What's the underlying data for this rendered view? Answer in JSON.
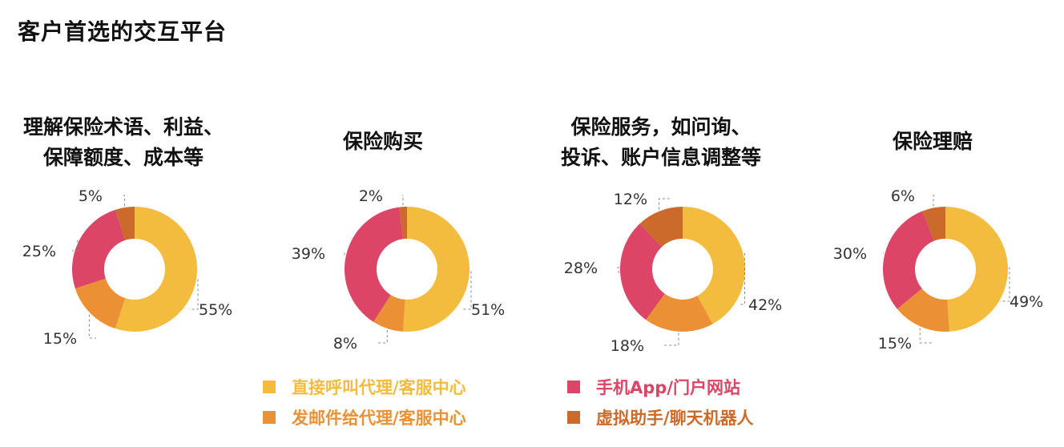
{
  "title": "客户首选的交互平台",
  "colors": {
    "phone": "#F3BC3E",
    "email": "#EC9035",
    "app": "#DC4565",
    "bot": "#CB6A2A"
  },
  "legend": [
    {
      "key": "phone",
      "label": "直接呼叫代理/客服中心",
      "color": "#F3BC3E"
    },
    {
      "key": "app",
      "label": "手机App/门户网站",
      "color": "#DC4565"
    },
    {
      "key": "email",
      "label": "发邮件给代理/客服中心",
      "color": "#EC9035"
    },
    {
      "key": "bot",
      "label": "虚拟助手/聊天机器人",
      "color": "#CB6A2A"
    }
  ],
  "chart_data": [
    {
      "type": "pie",
      "title": [
        "理解保险术语、利益、",
        "保障额度、成本等"
      ],
      "categories": [
        "直接呼叫代理/客服中心",
        "发邮件给代理/客服中心",
        "手机App/门户网站",
        "虚拟助手/聊天机器人"
      ],
      "values": [
        55,
        15,
        25,
        5
      ],
      "labels": [
        "55%",
        "15%",
        "25%",
        "5%"
      ]
    },
    {
      "type": "pie",
      "title": [
        "保险购买"
      ],
      "categories": [
        "直接呼叫代理/客服中心",
        "发邮件给代理/客服中心",
        "手机App/门户网站",
        "虚拟助手/聊天机器人"
      ],
      "values": [
        51,
        8,
        39,
        2
      ],
      "labels": [
        "51%",
        "8%",
        "39%",
        "2%"
      ]
    },
    {
      "type": "pie",
      "title": [
        "保险服务，如问询、",
        "投诉、账户信息调整等"
      ],
      "categories": [
        "直接呼叫代理/客服中心",
        "发邮件给代理/客服中心",
        "手机App/门户网站",
        "虚拟助手/聊天机器人"
      ],
      "values": [
        42,
        18,
        28,
        12
      ],
      "labels": [
        "42%",
        "18%",
        "28%",
        "12%"
      ]
    },
    {
      "type": "pie",
      "title": [
        "保险理赔"
      ],
      "categories": [
        "直接呼叫代理/客服中心",
        "发邮件给代理/客服中心",
        "手机App/门户网站",
        "虚拟助手/聊天机器人"
      ],
      "values": [
        49,
        15,
        30,
        6
      ],
      "labels": [
        "49%",
        "15%",
        "30%",
        "6%"
      ]
    }
  ]
}
